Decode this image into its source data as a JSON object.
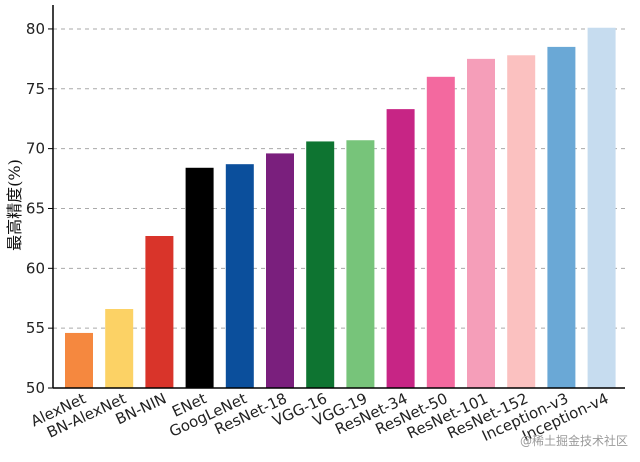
{
  "chart_data": {
    "type": "bar",
    "ylabel": "最高精度(%)",
    "ylim": [
      50,
      82
    ],
    "yticks": [
      50,
      55,
      60,
      65,
      70,
      75,
      80
    ],
    "grid": "horizontal-dashed",
    "categories": [
      "AlexNet",
      "BN-AlexNet",
      "BN-NIN",
      "ENet",
      "GoogLeNet",
      "ResNet-18",
      "VGG-16",
      "VGG-19",
      "ResNet-34",
      "ResNet-50",
      "ResNet-101",
      "ResNet-152",
      "Inception-v3",
      "Inception-v4"
    ],
    "values": [
      54.6,
      56.6,
      62.7,
      68.4,
      68.7,
      69.6,
      70.6,
      70.7,
      73.3,
      76.0,
      77.5,
      77.8,
      78.5,
      80.1
    ],
    "colors": [
      "#f5883f",
      "#fcd265",
      "#d9342a",
      "#000000",
      "#0b4f9c",
      "#7a1f7d",
      "#0e7431",
      "#77c47a",
      "#c72585",
      "#f3699f",
      "#f59eb9",
      "#fbc1c0",
      "#6aa8d6",
      "#c6dcef"
    ]
  },
  "watermark": "@稀土掘金技术社区"
}
